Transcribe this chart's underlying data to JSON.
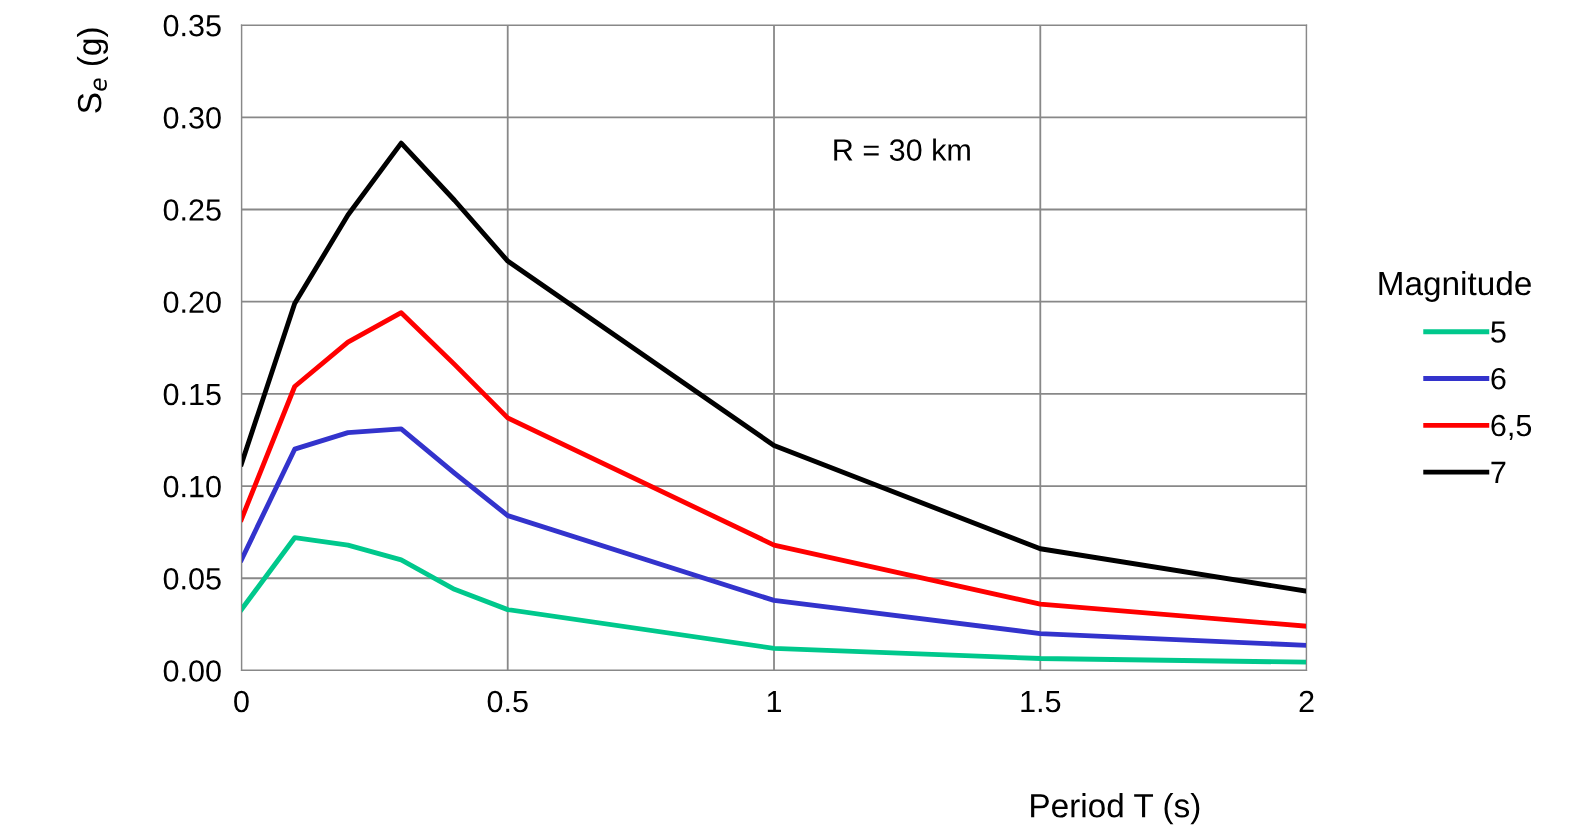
{
  "chart_data": {
    "type": "line",
    "xlabel": "Period T (s)",
    "ylabel": "S$_{e}$ (g)",
    "legend_title": "Magnitude",
    "legend": "right",
    "grid": true,
    "line_style": "solid",
    "annotations": [
      "R = 30 km"
    ],
    "x": [
      0,
      0.1,
      0.2,
      0.3,
      0.4,
      0.5,
      1,
      1.5,
      2
    ],
    "xlim": [
      0,
      2
    ],
    "xticks": [
      0,
      0.5,
      1,
      1.5,
      2
    ],
    "ylim": [
      0,
      0.35
    ],
    "yticks": [
      {
        "value": 0,
        "label": "0.00"
      },
      {
        "value": 0.05,
        "label": "0.05"
      },
      {
        "value": 0.1,
        "label": "0.10"
      },
      {
        "value": 0.15,
        "label": "0.15"
      },
      {
        "value": 0.2,
        "label": "0.20"
      },
      {
        "value": 0.25,
        "label": "0.25"
      },
      {
        "value": 0.3,
        "label": "0.30"
      },
      {
        "value": 0.35,
        "label": "0.35"
      }
    ],
    "series": [
      {
        "name": "5",
        "color": "#00c88c",
        "values": [
          0.033,
          0.072,
          0.068,
          0.06,
          0.044,
          0.033,
          0.012,
          0.0065,
          0.0045
        ]
      },
      {
        "name": "6",
        "color": "#3333cc",
        "values": [
          0.06,
          0.12,
          0.129,
          0.131,
          0.107,
          0.084,
          0.038,
          0.02,
          0.0136
        ]
      },
      {
        "name": "6,5",
        "color": "#ff0000",
        "values": [
          0.082,
          0.154,
          0.178,
          0.194,
          0.166,
          0.137,
          0.068,
          0.036,
          0.024
        ]
      },
      {
        "name": "7",
        "color": "#000000",
        "values": [
          0.112,
          0.199,
          0.247,
          0.286,
          0.255,
          0.222,
          0.122,
          0.066,
          0.043
        ]
      }
    ]
  }
}
